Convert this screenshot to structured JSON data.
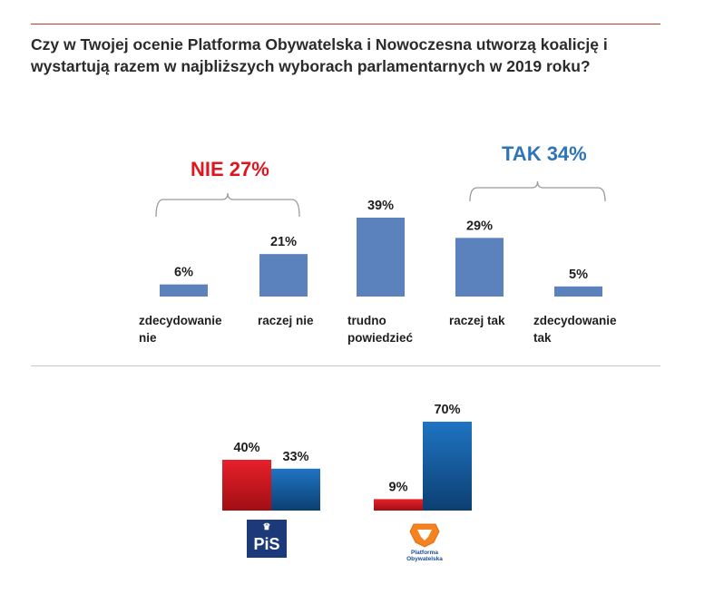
{
  "title": {
    "line1": "Czy w Twojej ocenie Platforma Obywatelska i Nowoczesna utworzą koalicję i",
    "line2": "wystartują razem w najbliższych wyborach parlamentarnych w 2019 roku?"
  },
  "groups": {
    "nie": {
      "label": "NIE 27%",
      "color": "#e0161e"
    },
    "tak": {
      "label": "TAK 34%",
      "color": "#2e75b6"
    }
  },
  "colors": {
    "bar": "#5b82bd",
    "red_top": "#e8202a",
    "red_bottom": "#a10e14",
    "blue_top": "#1f74c2",
    "blue_bottom": "#0c3f72",
    "brace": "#9a9a9a"
  },
  "chart_data": [
    {
      "type": "bar",
      "title": "Czy w Twojej ocenie Platforma Obywatelska i Nowoczesna utworzą koalicję i wystartują razem w najbliższych wyborach parlamentarnych w 2019 roku?",
      "categories": [
        "zdecydowanie\nnie",
        "raczej nie",
        "trudno\npowiedzieć",
        "raczej tak",
        "zdecydowanie\ntak"
      ],
      "values": [
        6,
        21,
        39,
        29,
        5
      ],
      "value_labels": [
        "6%",
        "21%",
        "39%",
        "29%",
        "5%"
      ],
      "ylim": [
        0,
        45
      ],
      "xlabel": "",
      "ylabel": "",
      "annotations": [
        "NIE 27%",
        "TAK 34%"
      ]
    },
    {
      "type": "bar",
      "categories": [
        "PiS",
        "Platforma Obywatelska"
      ],
      "series": [
        {
          "name": "nie",
          "values": [
            40,
            9
          ],
          "value_labels": [
            "40%",
            "9%"
          ]
        },
        {
          "name": "tak",
          "values": [
            33,
            70
          ],
          "value_labels": [
            "33%",
            "70%"
          ]
        }
      ],
      "ylim": [
        0,
        75
      ],
      "party_labels": {
        "pis": "PiS",
        "po": "Platforma\nObywatelska"
      }
    }
  ]
}
